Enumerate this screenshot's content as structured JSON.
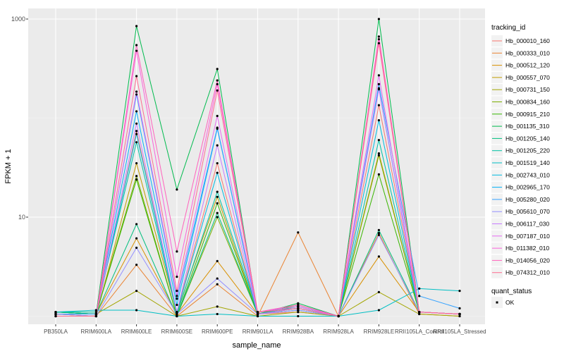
{
  "chart_data": {
    "type": "line",
    "title": "",
    "xlabel": "sample_name",
    "ylabel": "FPKM + 1",
    "yscale": "log10",
    "ylim": [
      0.93,
      1600
    ],
    "yticks": [
      10,
      1000
    ],
    "ytick_labels": [
      "10",
      "1000"
    ],
    "grid": true,
    "categories": [
      "PB350LA",
      "RRIM600LA",
      "RRIM600LE",
      "RRIM600SE",
      "RRIM600PE",
      "RRIM901LA",
      "RRIM928BA",
      "RRIM928LA",
      "RRIM928LE",
      "RRII105LA_Control",
      "RRII105LA_Stressed"
    ],
    "legend": {
      "title": "tracking_id",
      "placement": "right",
      "point_legend_title": "quant_status",
      "point_legend_items": [
        "OK"
      ]
    },
    "series": [
      {
        "name": "Hb_000010_160",
        "color": "#F8766D",
        "values": [
          1.05,
          1.0,
          74,
          1.1,
          35,
          1.05,
          1.1,
          1.0,
          135,
          1.1,
          1.05
        ]
      },
      {
        "name": "Hb_000333_010",
        "color": "#EA8331",
        "values": [
          1.05,
          1.0,
          3.3,
          1.0,
          2.1,
          1.0,
          7.0,
          1.0,
          6.9,
          1.05,
          1.0
        ]
      },
      {
        "name": "Hb_000512_120",
        "color": "#D89000",
        "values": [
          1.05,
          1.05,
          6.1,
          1.05,
          3.6,
          1.05,
          1.15,
          1.0,
          4.0,
          1.1,
          1.05
        ]
      },
      {
        "name": "Hb_000557_070",
        "color": "#C09B00",
        "values": [
          1.05,
          1.0,
          35,
          1.1,
          16,
          1.05,
          1.2,
          1.0,
          44,
          1.1,
          1.05
        ]
      },
      {
        "name": "Hb_000731_150",
        "color": "#A3A500",
        "values": [
          1.1,
          1.05,
          1.8,
          1.0,
          1.25,
          1.0,
          1.1,
          1.0,
          1.75,
          1.05,
          1.0
        ]
      },
      {
        "name": "Hb_000834_160",
        "color": "#7CAE00",
        "values": [
          1.1,
          1.05,
          26,
          1.0,
          10,
          1.05,
          1.2,
          1.0,
          42,
          1.1,
          1.05
        ]
      },
      {
        "name": "Hb_000915_210",
        "color": "#39B600",
        "values": [
          1.1,
          1.05,
          24,
          1.0,
          13.8,
          1.05,
          1.3,
          1.0,
          27,
          1.1,
          1.05
        ]
      },
      {
        "name": "Hb_001135_310",
        "color": "#00BB4E",
        "values": [
          1.1,
          1.05,
          849,
          19,
          313,
          1.05,
          1.35,
          1.0,
          1000,
          1.1,
          1.05
        ]
      },
      {
        "name": "Hb_001205_140",
        "color": "#00BF7D",
        "values": [
          1.1,
          1.05,
          8.5,
          1.0,
          11,
          1.05,
          1.25,
          1.0,
          7.4,
          1.1,
          1.05
        ]
      },
      {
        "name": "Hb_001205_220",
        "color": "#00C1A3",
        "values": [
          1.1,
          1.1,
          57,
          1.05,
          18,
          1.1,
          1.2,
          1.0,
          60,
          1.1,
          1.05
        ]
      },
      {
        "name": "Hb_001519_140",
        "color": "#00BFC4",
        "values": [
          1.1,
          1.15,
          1.15,
          1.0,
          1.05,
          1.0,
          1.0,
          1.0,
          1.15,
          1.9,
          1.8
        ]
      },
      {
        "name": "Hb_002743_010",
        "color": "#00BAE0",
        "values": [
          1.05,
          1.05,
          69,
          1.1,
          28,
          1.05,
          1.15,
          1.0,
          95,
          1.1,
          1.05
        ]
      },
      {
        "name": "Hb_002965_170",
        "color": "#00B0F6",
        "values": [
          1.05,
          1.05,
          117,
          1.3,
          78,
          1.1,
          1.2,
          1.0,
          200,
          1.1,
          1.05
        ]
      },
      {
        "name": "Hb_005280_020",
        "color": "#35A2FF",
        "values": [
          1.05,
          1.05,
          173,
          1.5,
          80,
          1.1,
          1.25,
          1.0,
          220,
          1.6,
          1.2
        ]
      },
      {
        "name": "Hb_005610_070",
        "color": "#9590FF",
        "values": [
          1.05,
          1.0,
          4.9,
          1.05,
          2.4,
          1.05,
          1.15,
          1.0,
          6.6,
          1.1,
          1.05
        ]
      },
      {
        "name": "Hb_006117_030",
        "color": "#C77CFF",
        "values": [
          1.0,
          1.0,
          88,
          1.1,
          53,
          1.05,
          1.2,
          1.0,
          195,
          1.1,
          1.05
        ]
      },
      {
        "name": "Hb_007187_010",
        "color": "#E76BF3",
        "values": [
          1.0,
          1.0,
          185,
          1.6,
          105,
          1.1,
          1.25,
          1.0,
          270,
          1.1,
          1.05
        ]
      },
      {
        "name": "Hb_011382_010",
        "color": "#FA62DB",
        "values": [
          1.0,
          1.0,
          478,
          2.5,
          220,
          1.1,
          1.3,
          1.0,
          625,
          1.1,
          1.05
        ]
      },
      {
        "name": "Hb_014056_020",
        "color": "#FF62BC",
        "values": [
          1.0,
          1.0,
          545,
          4.5,
          240,
          1.1,
          1.3,
          1.0,
          665,
          1.1,
          1.05
        ]
      },
      {
        "name": "Hb_074312_010",
        "color": "#FF6C91",
        "values": [
          1.0,
          1.0,
          265,
          1.8,
          190,
          1.1,
          1.2,
          1.0,
          570,
          1.1,
          1.05
        ]
      }
    ]
  }
}
